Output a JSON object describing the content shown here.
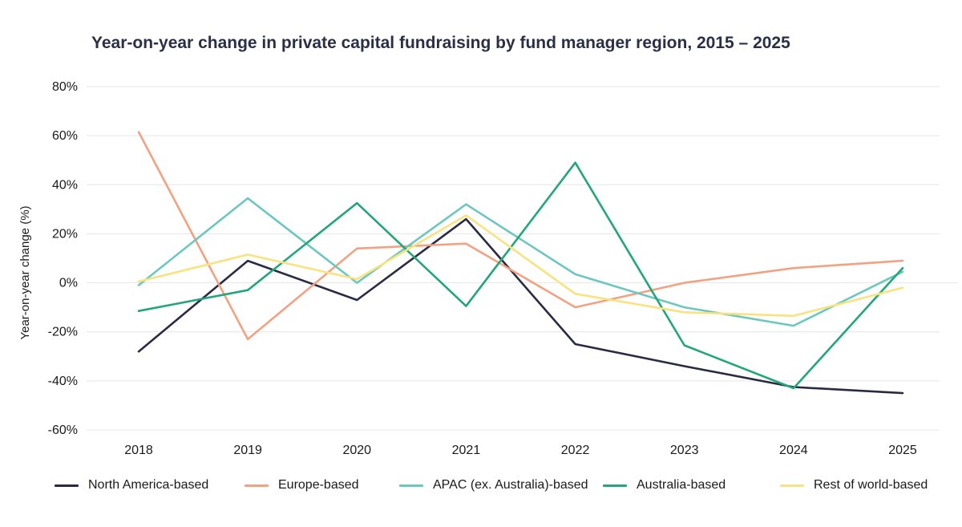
{
  "chart_data": {
    "type": "line",
    "title": "Year-on-year change in private capital fundraising by fund manager region, 2015 – 2025",
    "xlabel": "",
    "ylabel": "Year-on-year change (%)",
    "categories": [
      "2018",
      "2019",
      "2020",
      "2021",
      "2022",
      "2023",
      "2024",
      "2025"
    ],
    "ylim": [
      -60,
      80
    ],
    "yticks": [
      80,
      60,
      40,
      20,
      0,
      -20,
      -40,
      -60
    ],
    "ytick_labels": [
      "80%",
      "60%",
      "40%",
      "20%",
      "0%",
      "-20%",
      "-40%",
      "-60%"
    ],
    "grid": true,
    "legend_position": "bottom",
    "series": [
      {
        "name": "North America-based",
        "color": "#2b2a45",
        "values": [
          -28,
          9,
          -7,
          26,
          -25,
          -34,
          -42.5,
          -45
        ]
      },
      {
        "name": "Europe-based",
        "color": "#f2a282",
        "values": [
          61.5,
          -23,
          14,
          16,
          -10,
          0,
          6,
          9
        ]
      },
      {
        "name": "APAC (ex. Australia)-based",
        "color": "#6dc7c1",
        "values": [
          -1,
          34.5,
          0,
          32,
          3.5,
          -10,
          -17.5,
          4.5
        ]
      },
      {
        "name": "Australia-based",
        "color": "#22a67a",
        "values": [
          -11.5,
          -3,
          32.5,
          -9.5,
          49,
          -25.5,
          -43,
          6
        ]
      },
      {
        "name": "Rest of world-based",
        "color": "#f8e37f",
        "values": [
          0.5,
          11.5,
          1.5,
          27.5,
          -4.5,
          -12,
          -13.5,
          -2
        ]
      }
    ]
  }
}
